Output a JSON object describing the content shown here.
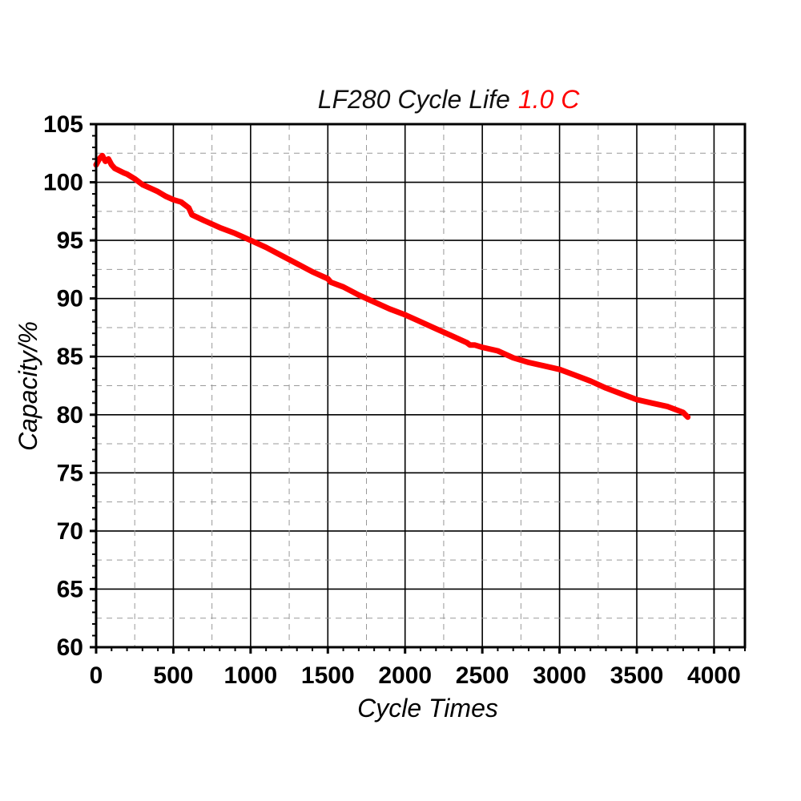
{
  "chart_data": {
    "type": "line",
    "title": "LF280 Cycle Life",
    "title_highlight": "1.0 C",
    "title_highlight_color": "#ff0000",
    "xlabel": "Cycle Times",
    "ylabel": "Capacity/%",
    "xlim": [
      0,
      4200
    ],
    "ylim": [
      60,
      105
    ],
    "x_ticks": [
      0,
      500,
      1000,
      1500,
      2000,
      2500,
      3000,
      3500,
      4000
    ],
    "y_ticks": [
      60,
      65,
      70,
      75,
      80,
      85,
      90,
      95,
      100,
      105
    ],
    "x_tick_labels": [
      "0",
      "500",
      "1000",
      "1500",
      "2000",
      "2500",
      "3000",
      "3500",
      "4000"
    ],
    "y_tick_labels": [
      "60",
      "65",
      "70",
      "75",
      "80",
      "85",
      "90",
      "95",
      "100",
      "105"
    ],
    "grid": true,
    "series": [
      {
        "color": "#ff0000",
        "x": [
          0,
          20,
          40,
          60,
          80,
          100,
          120,
          150,
          180,
          200,
          250,
          300,
          350,
          400,
          450,
          500,
          550,
          600,
          620,
          700,
          800,
          900,
          1000,
          1100,
          1200,
          1300,
          1400,
          1500,
          1520,
          1600,
          1700,
          1800,
          1900,
          2000,
          2100,
          2200,
          2300,
          2400,
          2420,
          2450,
          2500,
          2600,
          2700,
          2800,
          2900,
          3000,
          3100,
          3200,
          3300,
          3400,
          3500,
          3600,
          3700,
          3800,
          3830
        ],
        "y": [
          101.5,
          102.0,
          102.3,
          101.8,
          102.0,
          101.5,
          101.2,
          101.0,
          100.8,
          100.7,
          100.3,
          99.8,
          99.5,
          99.2,
          98.8,
          98.5,
          98.3,
          97.8,
          97.2,
          96.7,
          96.1,
          95.6,
          95.0,
          94.4,
          93.7,
          93.0,
          92.3,
          91.7,
          91.4,
          91.0,
          90.3,
          89.7,
          89.1,
          88.6,
          88.0,
          87.4,
          86.8,
          86.2,
          86.0,
          86.0,
          85.8,
          85.5,
          84.9,
          84.5,
          84.2,
          83.9,
          83.4,
          82.9,
          82.3,
          81.8,
          81.3,
          81.0,
          80.7,
          80.2,
          79.8
        ]
      }
    ]
  }
}
